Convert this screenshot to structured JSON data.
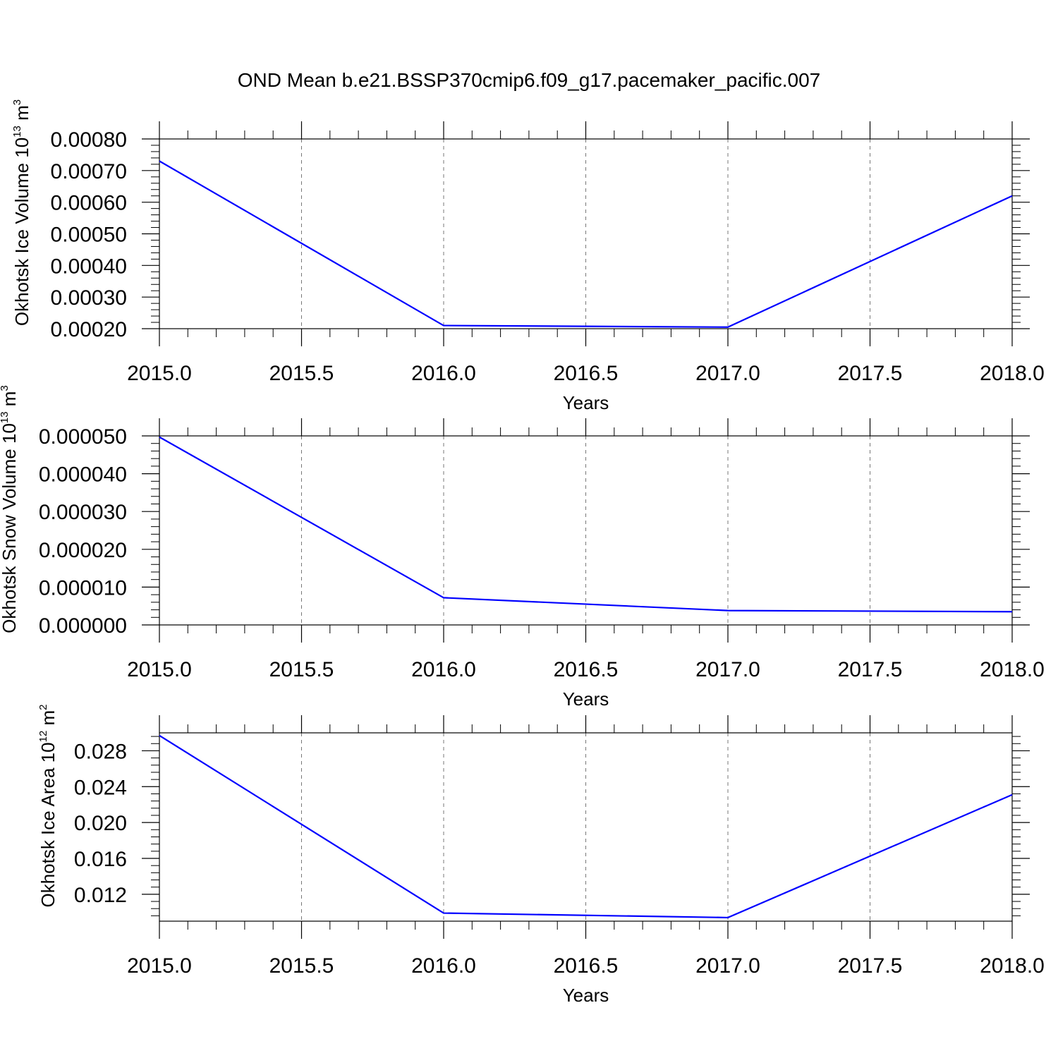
{
  "title": "OND Mean b.e21.BSSP370cmip6.f09_g17.pacemaker_pacific.007",
  "line_color": "#0000ff",
  "chart_data": [
    {
      "type": "line",
      "ylabel": "Okhotsk Ice Volume 10",
      "ylabel_exp": "13",
      "ylabel_unit": " m",
      "ylabel_unit_exp": "3",
      "xlabel": "Years",
      "xlim": [
        2015.0,
        2018.0
      ],
      "ylim": [
        0.0002,
        0.0008
      ],
      "xticks": [
        "2015.0",
        "2015.5",
        "2016.0",
        "2016.5",
        "2017.0",
        "2017.5",
        "2018.0"
      ],
      "yticks": [
        "0.00020",
        "0.00030",
        "0.00040",
        "0.00050",
        "0.00060",
        "0.00070",
        "0.00080"
      ],
      "grid": "vertical dashed",
      "x": [
        2015,
        2016,
        2017,
        2018
      ],
      "values": [
        0.00073,
        0.00021,
        0.000205,
        0.00062
      ]
    },
    {
      "type": "line",
      "ylabel": "Okhotsk Snow Volume 10",
      "ylabel_exp": "13",
      "ylabel_unit": " m",
      "ylabel_unit_exp": "3",
      "xlabel": "Years",
      "xlim": [
        2015.0,
        2018.0
      ],
      "ylim": [
        0.0,
        5e-05
      ],
      "xticks": [
        "2015.0",
        "2015.5",
        "2016.0",
        "2016.5",
        "2017.0",
        "2017.5",
        "2018.0"
      ],
      "yticks": [
        "0.000000",
        "0.000010",
        "0.000020",
        "0.000030",
        "0.000040",
        "0.000050"
      ],
      "grid": "vertical dashed",
      "x": [
        2015,
        2016,
        2017,
        2018
      ],
      "values": [
        4.97e-05,
        7.2e-06,
        3.8e-06,
        3.5e-06
      ]
    },
    {
      "type": "line",
      "ylabel": "Okhotsk Ice Area 10",
      "ylabel_exp": "12",
      "ylabel_unit": " m",
      "ylabel_unit_exp": "2",
      "xlabel": "Years",
      "xlim": [
        2015.0,
        2018.0
      ],
      "ylim": [
        0.009,
        0.03
      ],
      "xticks": [
        "2015.0",
        "2015.5",
        "2016.0",
        "2016.5",
        "2017.0",
        "2017.5",
        "2018.0"
      ],
      "yticks": [
        "0.012",
        "0.016",
        "0.020",
        "0.024",
        "0.028"
      ],
      "grid": "vertical dashed",
      "x": [
        2015,
        2016,
        2017,
        2018
      ],
      "values": [
        0.0297,
        0.0099,
        0.0094,
        0.0231
      ]
    }
  ]
}
